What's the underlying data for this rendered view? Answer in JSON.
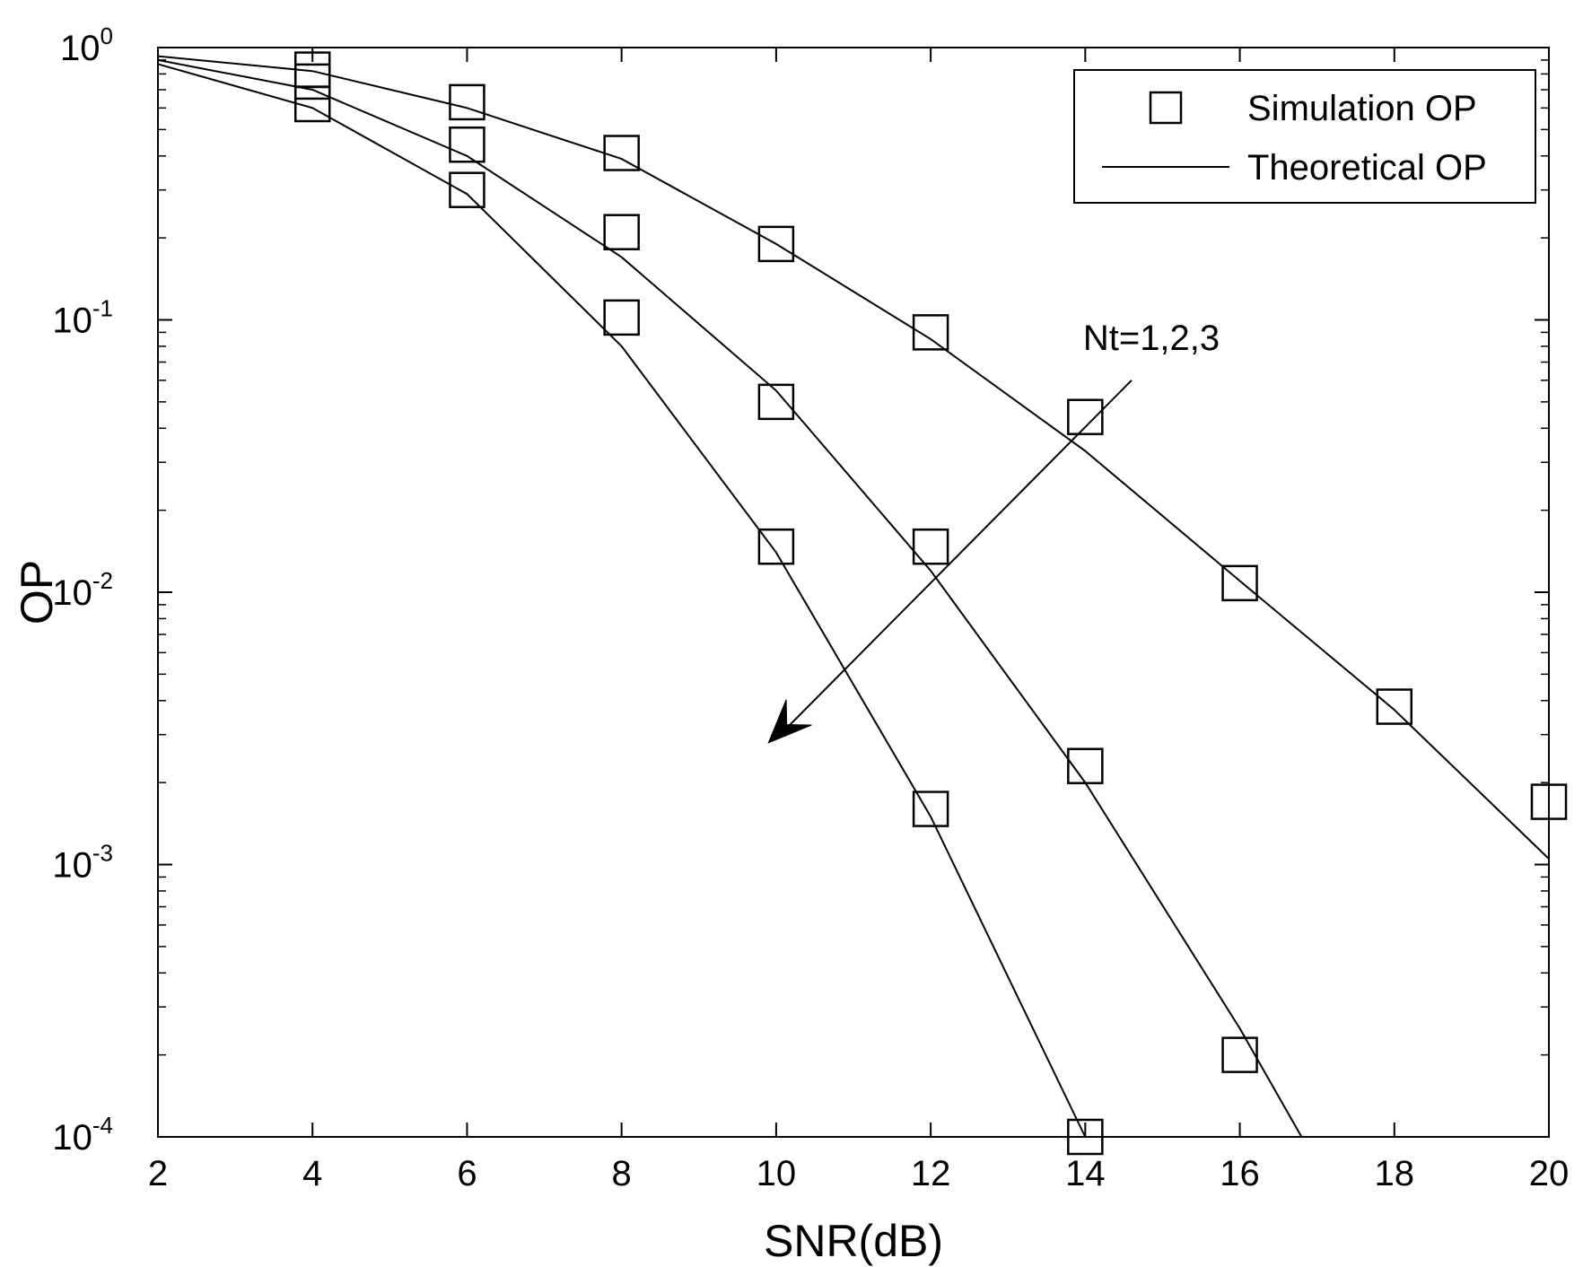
{
  "chart_data": {
    "type": "line",
    "xlabel": "SNR(dB)",
    "ylabel": "OP",
    "xlim": [
      2,
      20
    ],
    "ylim": [
      0.0001,
      1
    ],
    "yscale": "log",
    "xticks": [
      2,
      4,
      6,
      8,
      10,
      12,
      14,
      16,
      18,
      20
    ],
    "xtick_labels": [
      "2",
      "4",
      "6",
      "8",
      "10",
      "12",
      "14",
      "16",
      "18",
      "20"
    ],
    "yticks": [
      {
        "value": 1,
        "base": "10",
        "exp": "0"
      },
      {
        "value": 0.1,
        "base": "10",
        "exp": "-1"
      },
      {
        "value": 0.01,
        "base": "10",
        "exp": "-2"
      },
      {
        "value": 0.001,
        "base": "10",
        "exp": "-3"
      },
      {
        "value": 0.0001,
        "base": "10",
        "exp": "-4"
      }
    ],
    "grid": false,
    "legend": {
      "position": "top-right",
      "entries": [
        {
          "label": "Simulation OP",
          "marker": "square"
        },
        {
          "label": "Theoretical OP",
          "marker": "line"
        }
      ]
    },
    "annotation": {
      "text": "Nt=1,2,3",
      "from": [
        14.6,
        0.06
      ],
      "to": [
        9.9,
        0.0028
      ]
    },
    "series": [
      {
        "group": "Simulation OP",
        "marker": "square",
        "x": [
          4,
          6,
          8,
          10,
          12,
          14,
          16,
          18,
          20
        ],
        "y": [
          0.83,
          0.63,
          0.41,
          0.19,
          0.09,
          0.044,
          0.0108,
          0.0038,
          0.0017
        ]
      },
      {
        "group": "Theoretical OP",
        "marker": "none",
        "x": [
          2,
          4,
          6,
          8,
          10,
          12,
          14,
          16,
          18,
          20
        ],
        "y": [
          0.93,
          0.82,
          0.6,
          0.39,
          0.19,
          0.085,
          0.033,
          0.011,
          0.0037,
          0.00105
        ]
      },
      {
        "group": "Simulation OP",
        "marker": "square",
        "x": [
          4,
          6,
          8,
          10,
          12,
          14,
          16
        ],
        "y": [
          0.75,
          0.44,
          0.21,
          0.05,
          0.0147,
          0.0023,
          0.0002
        ]
      },
      {
        "group": "Theoretical OP",
        "marker": "none",
        "x": [
          2,
          4,
          6,
          8,
          10,
          12,
          14,
          16,
          16.8
        ],
        "y": [
          0.9,
          0.7,
          0.4,
          0.17,
          0.055,
          0.012,
          0.002,
          0.00025,
          0.0001
        ]
      },
      {
        "group": "Simulation OP",
        "marker": "square",
        "x": [
          4,
          6,
          8,
          10,
          12,
          14
        ],
        "y": [
          0.62,
          0.3,
          0.102,
          0.0147,
          0.0016,
          0.0001
        ]
      },
      {
        "group": "Theoretical OP",
        "marker": "none",
        "x": [
          2,
          4,
          6,
          8,
          10,
          12,
          14
        ],
        "y": [
          0.87,
          0.6,
          0.29,
          0.08,
          0.014,
          0.0015,
          0.0001
        ]
      }
    ]
  }
}
